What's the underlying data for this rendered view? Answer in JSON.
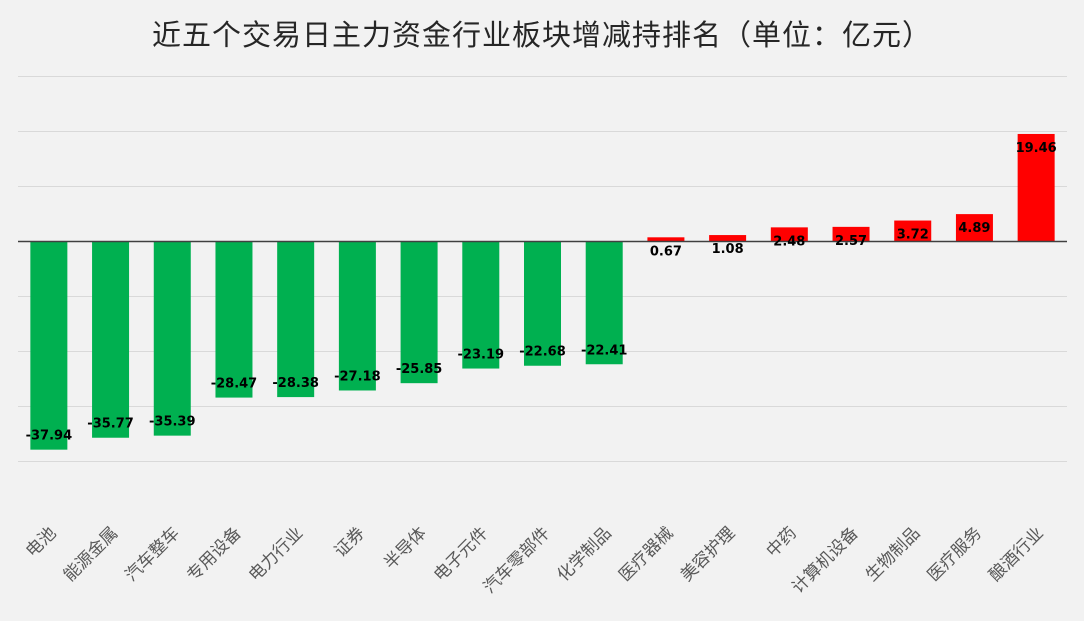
{
  "chart_data": {
    "type": "bar",
    "title": "近五个交易日主力资金行业板块增减持排名（单位：亿元）",
    "xlabel": "",
    "ylabel": "",
    "ylim": [
      -40,
      30
    ],
    "grid": true,
    "legend": "none",
    "colors": {
      "positive": "#ff0000",
      "negative": "#00b050",
      "background": "#f2f2f2"
    },
    "categories": [
      "电池",
      "能源金属",
      "汽车整车",
      "专用设备",
      "电力行业",
      "证券",
      "半导体",
      "电子元件",
      "汽车零部件",
      "化学制品",
      "医疗器械",
      "美容护理",
      "中药",
      "计算机设备",
      "生物制品",
      "医疗服务",
      "酿酒行业"
    ],
    "values": [
      -37.94,
      -35.77,
      -35.39,
      -28.47,
      -28.38,
      -27.18,
      -25.85,
      -23.19,
      -22.68,
      -22.41,
      0.67,
      1.08,
      2.48,
      2.57,
      3.72,
      4.89,
      19.46
    ],
    "value_labels": [
      "-37.94",
      "-35.77",
      "-35.39",
      "-28.47",
      "-28.38",
      "-27.18",
      "-25.85",
      "-23.19",
      "-22.68",
      "-22.41",
      "0.67",
      "1.08",
      "2.48",
      "2.57",
      "3.72",
      "4.89",
      "19.46"
    ]
  }
}
